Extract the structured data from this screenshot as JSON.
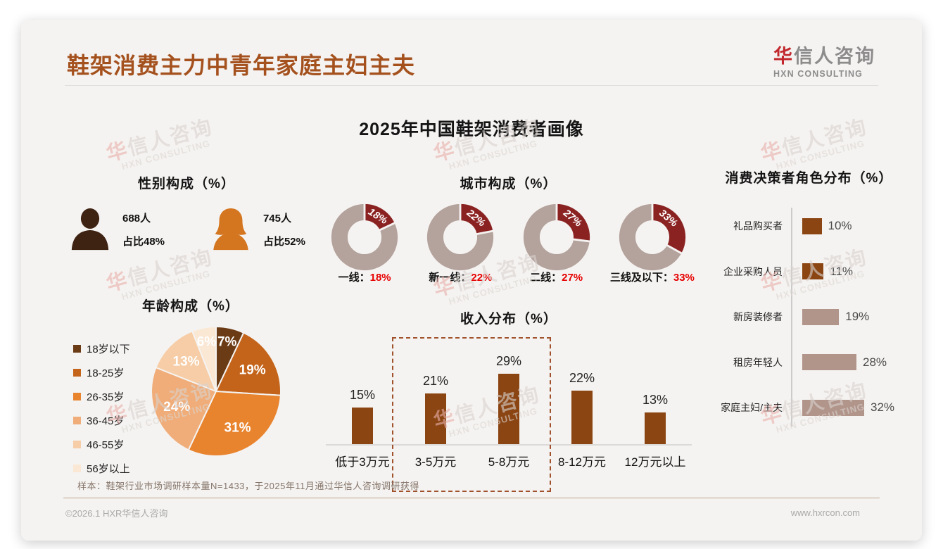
{
  "header": {
    "title": "鞋架消费主力中青年家庭主妇主夫",
    "logo_cn_accent": "华",
    "logo_cn_rest": "信人咨询",
    "logo_en": "HXN CONSULTING"
  },
  "main_title": "2025年中国鞋架消费者画像",
  "watermark": {
    "cn_accent": "华",
    "cn_rest": "信人咨询",
    "en": "HXN CONSULTING"
  },
  "footer": {
    "sample_note": "样本：鞋架行业市场调研样本量N=1433，于2025年11月通过华信人咨询调研获得",
    "copyright": "©2026.1 HXR华信人咨询",
    "website": "www.hxrcon.com"
  },
  "chart_data": [
    {
      "id": "gender",
      "type": "pictogram",
      "title": "性别构成（%）",
      "items": [
        {
          "icon": "male-icon",
          "count": "688人",
          "share": "占比48%",
          "color": "#3E2212"
        },
        {
          "icon": "female-icon",
          "count": "745人",
          "share": "占比52%",
          "color": "#D4751F"
        }
      ]
    },
    {
      "id": "city",
      "type": "donut",
      "title": "城市构成（%）",
      "categories": [
        "一线",
        "新一线",
        "二线",
        "三线及以下"
      ],
      "values": [
        18,
        22,
        27,
        33
      ],
      "segment_color": "#8B2222",
      "remainder_color": "#B4A29C",
      "label_value_color": "#E60000",
      "start": "top",
      "direction": "clockwise"
    },
    {
      "id": "age",
      "type": "pie",
      "title": "年龄构成（%）",
      "categories": [
        "18岁以下",
        "18-25岁",
        "26-35岁",
        "36-45岁",
        "46-55岁",
        "56岁以上"
      ],
      "values": [
        7,
        19,
        31,
        24,
        13,
        6
      ],
      "colors": [
        "#6B3B16",
        "#C4641B",
        "#E8832E",
        "#F0AD79",
        "#F6CDA6",
        "#FAE7D4"
      ],
      "legend_position": "left",
      "start": "top",
      "direction": "clockwise"
    },
    {
      "id": "income",
      "type": "bar",
      "title": "收入分布（%）",
      "categories": [
        "低于3万元",
        "3-5万元",
        "5-8万元",
        "8-12万元",
        "12万元以上"
      ],
      "values": [
        15,
        21,
        29,
        22,
        13
      ],
      "bar_color": "#8B4513",
      "value_suffix": "%",
      "highlight": {
        "from_index": 1,
        "to_index": 2,
        "style": "dashed",
        "color": "#A0522D"
      }
    },
    {
      "id": "roles",
      "type": "horizontal_bar",
      "title": "消费决策者角色分布（%）",
      "categories": [
        "礼品购买者",
        "企业采购人员",
        "新房装修者",
        "租房年轻人",
        "家庭主妇/主夫"
      ],
      "values": [
        10,
        11,
        19,
        28,
        32
      ],
      "bar_colors": [
        "#8B4513",
        "#8B4513",
        "#B1948A",
        "#B1948A",
        "#B1948A"
      ],
      "value_suffix": "%"
    }
  ]
}
